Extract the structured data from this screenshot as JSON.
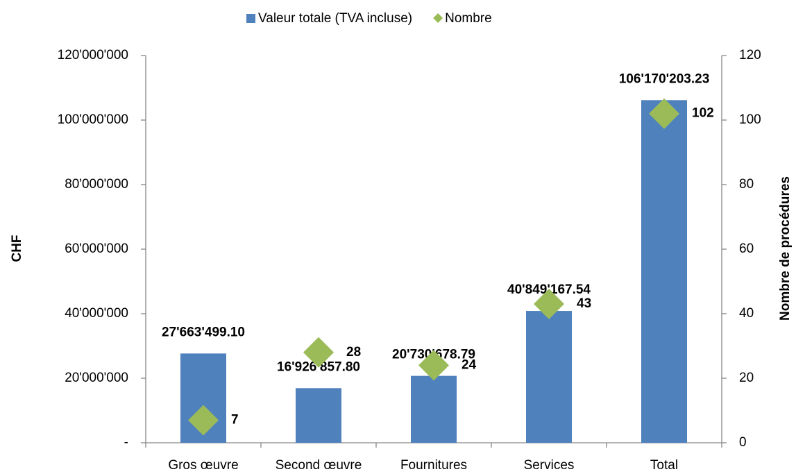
{
  "chart_data": {
    "type": "bar",
    "categories": [
      "Gros œuvre",
      "Second œuvre",
      "Fournitures",
      "Services",
      "Total"
    ],
    "series": [
      {
        "name": "Valeur totale (TVA incluse)",
        "type": "bar",
        "color": "#4f81bd",
        "values": [
          27663499.1,
          16926857.8,
          20730678.79,
          40849167.54,
          106170203.23
        ],
        "value_labels": [
          "27'663'499.10",
          "16'926'857.80",
          "20'730'678.79",
          "40'849'167.54",
          "106'170'203.23"
        ]
      },
      {
        "name": "Nombre",
        "type": "scatter",
        "axis": "y2",
        "marker": "diamond",
        "color": "#9bbb59",
        "values": [
          7,
          28,
          24,
          43,
          102
        ]
      }
    ],
    "ylabel": "CHF",
    "y2label": "Nombre de procédures",
    "ylim": [
      0,
      120000000
    ],
    "yticks": [
      {
        "value": 0,
        "label": "-"
      },
      {
        "value": 20000000,
        "label": "20'000'000"
      },
      {
        "value": 40000000,
        "label": "40'000'000"
      },
      {
        "value": 60000000,
        "label": "60'000'000"
      },
      {
        "value": 80000000,
        "label": "80'000'000"
      },
      {
        "value": 100000000,
        "label": "100'000'000"
      },
      {
        "value": 120000000,
        "label": "120'000'000"
      }
    ],
    "y2lim": [
      0,
      120
    ],
    "y2ticks": [
      0,
      20,
      40,
      60,
      80,
      100,
      120
    ],
    "grid": false,
    "legend": "top"
  }
}
